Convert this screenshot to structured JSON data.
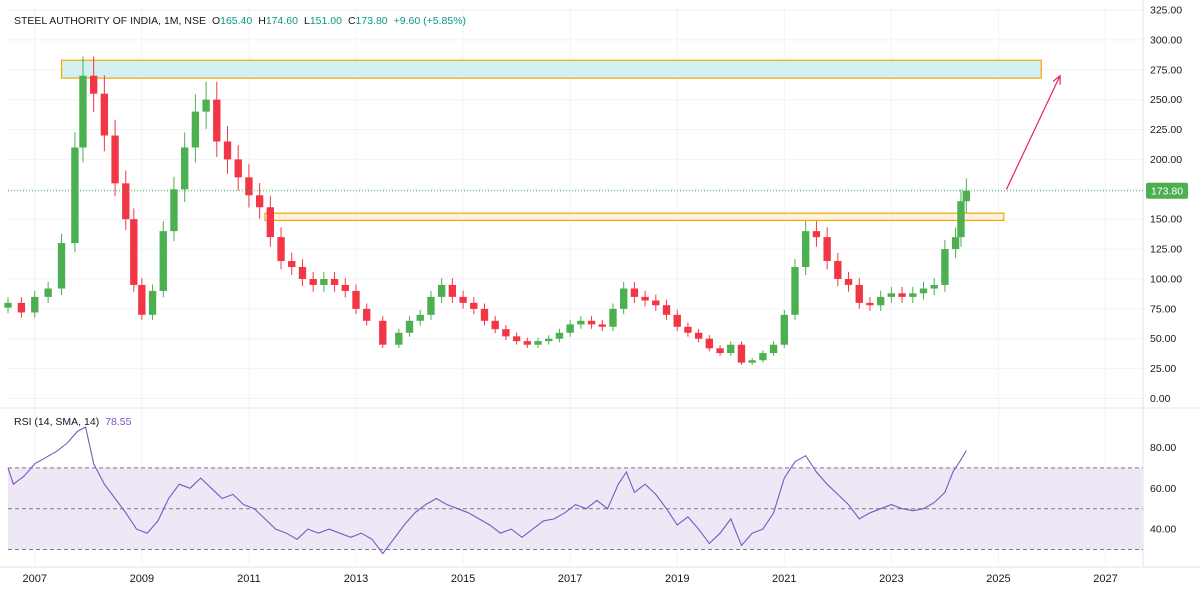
{
  "header": {
    "symbol": "STEEL AUTHORITY OF INDIA, 1M, NSE",
    "o_label": "O",
    "o_value": "165.40",
    "h_label": "H",
    "h_value": "174.60",
    "l_label": "L",
    "l_value": "151.00",
    "c_label": "C",
    "c_value": "173.80",
    "change": "+9.60 (+5.85%)"
  },
  "rsi_header": {
    "label": "RSI (14, SMA, 14)",
    "value": "78.55"
  },
  "price_badge": "173.80",
  "colors": {
    "up": "#4caf50",
    "down": "#f23645",
    "rsi": "#7e57c2",
    "rsi_band": "#ede7f6",
    "zone_fill": "#d3f1f0",
    "zone_border": "#f7a600",
    "arrow": "#e91e63",
    "price_line": "#4caf50",
    "grid": "#f0f3fa",
    "axis_text": "#131722"
  },
  "chart_data": [
    {
      "type": "candlestick",
      "title": "",
      "y_ticks": [
        "0.00",
        "25.00",
        "50.00",
        "75.00",
        "100.00",
        "125.00",
        "150.00",
        "175.00",
        "200.00",
        "225.00",
        "250.00",
        "275.00",
        "300.00",
        "325.00"
      ],
      "ylim": [
        0,
        325
      ],
      "x_ticks": [
        "2007",
        "2009",
        "2011",
        "2013",
        "2015",
        "2017",
        "2019",
        "2021",
        "2023",
        "2025",
        "2027"
      ],
      "last_price": 173.8,
      "resistance_zone": {
        "x_start": 2007.5,
        "x_end": 2025.8,
        "low": 268,
        "high": 283
      },
      "support_zone": {
        "x_start": 2011.3,
        "x_end": 2025.1,
        "low": 149,
        "high": 155
      },
      "arrow": {
        "from": [
          2025.15,
          175
        ],
        "to": [
          2026.15,
          270
        ]
      },
      "series": [
        [
          2006.5,
          80
        ],
        [
          2006.75,
          72
        ],
        [
          2007.0,
          85
        ],
        [
          2007.25,
          92
        ],
        [
          2007.5,
          130
        ],
        [
          2007.75,
          210
        ],
        [
          2007.9,
          270
        ],
        [
          2008.1,
          255
        ],
        [
          2008.3,
          220
        ],
        [
          2008.5,
          180
        ],
        [
          2008.7,
          150
        ],
        [
          2008.85,
          95
        ],
        [
          2009.0,
          70
        ],
        [
          2009.2,
          90
        ],
        [
          2009.4,
          140
        ],
        [
          2009.6,
          175
        ],
        [
          2009.8,
          210
        ],
        [
          2010.0,
          240
        ],
        [
          2010.2,
          250
        ],
        [
          2010.4,
          215
        ],
        [
          2010.6,
          200
        ],
        [
          2010.8,
          185
        ],
        [
          2011.0,
          170
        ],
        [
          2011.2,
          160
        ],
        [
          2011.4,
          135
        ],
        [
          2011.6,
          115
        ],
        [
          2011.8,
          110
        ],
        [
          2012.0,
          100
        ],
        [
          2012.2,
          95
        ],
        [
          2012.4,
          100
        ],
        [
          2012.6,
          95
        ],
        [
          2012.8,
          90
        ],
        [
          2013.0,
          75
        ],
        [
          2013.2,
          65
        ],
        [
          2013.5,
          45
        ],
        [
          2013.8,
          55
        ],
        [
          2014.0,
          65
        ],
        [
          2014.2,
          70
        ],
        [
          2014.4,
          85
        ],
        [
          2014.6,
          95
        ],
        [
          2014.8,
          85
        ],
        [
          2015.0,
          80
        ],
        [
          2015.2,
          75
        ],
        [
          2015.4,
          65
        ],
        [
          2015.6,
          58
        ],
        [
          2015.8,
          52
        ],
        [
          2016.0,
          48
        ],
        [
          2016.2,
          45
        ],
        [
          2016.4,
          48
        ],
        [
          2016.6,
          50
        ],
        [
          2016.8,
          55
        ],
        [
          2017.0,
          62
        ],
        [
          2017.2,
          65
        ],
        [
          2017.4,
          62
        ],
        [
          2017.6,
          60
        ],
        [
          2017.8,
          75
        ],
        [
          2018.0,
          92
        ],
        [
          2018.2,
          85
        ],
        [
          2018.4,
          82
        ],
        [
          2018.6,
          78
        ],
        [
          2018.8,
          70
        ],
        [
          2019.0,
          60
        ],
        [
          2019.2,
          55
        ],
        [
          2019.4,
          50
        ],
        [
          2019.6,
          42
        ],
        [
          2019.8,
          38
        ],
        [
          2020.0,
          45
        ],
        [
          2020.2,
          30
        ],
        [
          2020.4,
          32
        ],
        [
          2020.6,
          38
        ],
        [
          2020.8,
          45
        ],
        [
          2021.0,
          70
        ],
        [
          2021.2,
          110
        ],
        [
          2021.4,
          140
        ],
        [
          2021.6,
          135
        ],
        [
          2021.8,
          115
        ],
        [
          2022.0,
          100
        ],
        [
          2022.2,
          95
        ],
        [
          2022.4,
          80
        ],
        [
          2022.6,
          78
        ],
        [
          2022.8,
          85
        ],
        [
          2023.0,
          88
        ],
        [
          2023.2,
          85
        ],
        [
          2023.4,
          88
        ],
        [
          2023.6,
          92
        ],
        [
          2023.8,
          95
        ],
        [
          2024.0,
          125
        ],
        [
          2024.2,
          135
        ],
        [
          2024.3,
          165
        ],
        [
          2024.4,
          173.8
        ]
      ]
    },
    {
      "type": "line",
      "title": "",
      "y_ticks": [
        "40.00",
        "60.00",
        "80.00"
      ],
      "ylim": [
        25,
        95
      ],
      "bands": [
        30,
        50,
        70
      ],
      "series": [
        [
          2006.5,
          70
        ],
        [
          2006.6,
          62
        ],
        [
          2006.8,
          66
        ],
        [
          2007.0,
          72
        ],
        [
          2007.2,
          75
        ],
        [
          2007.4,
          78
        ],
        [
          2007.6,
          82
        ],
        [
          2007.8,
          88
        ],
        [
          2007.95,
          90
        ],
        [
          2008.1,
          72
        ],
        [
          2008.3,
          62
        ],
        [
          2008.5,
          55
        ],
        [
          2008.7,
          48
        ],
        [
          2008.9,
          40
        ],
        [
          2009.1,
          38
        ],
        [
          2009.3,
          44
        ],
        [
          2009.5,
          55
        ],
        [
          2009.7,
          62
        ],
        [
          2009.9,
          60
        ],
        [
          2010.1,
          65
        ],
        [
          2010.3,
          60
        ],
        [
          2010.5,
          55
        ],
        [
          2010.7,
          57
        ],
        [
          2010.9,
          52
        ],
        [
          2011.1,
          50
        ],
        [
          2011.3,
          45
        ],
        [
          2011.5,
          40
        ],
        [
          2011.7,
          38
        ],
        [
          2011.9,
          35
        ],
        [
          2012.1,
          40
        ],
        [
          2012.3,
          38
        ],
        [
          2012.5,
          40
        ],
        [
          2012.7,
          38
        ],
        [
          2012.9,
          36
        ],
        [
          2013.1,
          38
        ],
        [
          2013.3,
          35
        ],
        [
          2013.5,
          28
        ],
        [
          2013.7,
          35
        ],
        [
          2013.9,
          42
        ],
        [
          2014.1,
          48
        ],
        [
          2014.3,
          52
        ],
        [
          2014.5,
          55
        ],
        [
          2014.7,
          52
        ],
        [
          2014.9,
          50
        ],
        [
          2015.1,
          48
        ],
        [
          2015.3,
          45
        ],
        [
          2015.5,
          42
        ],
        [
          2015.7,
          38
        ],
        [
          2015.9,
          40
        ],
        [
          2016.1,
          36
        ],
        [
          2016.3,
          40
        ],
        [
          2016.5,
          44
        ],
        [
          2016.7,
          45
        ],
        [
          2016.9,
          48
        ],
        [
          2017.1,
          52
        ],
        [
          2017.3,
          50
        ],
        [
          2017.5,
          54
        ],
        [
          2017.7,
          50
        ],
        [
          2017.9,
          62
        ],
        [
          2018.05,
          68
        ],
        [
          2018.2,
          58
        ],
        [
          2018.4,
          62
        ],
        [
          2018.6,
          57
        ],
        [
          2018.8,
          50
        ],
        [
          2019.0,
          42
        ],
        [
          2019.2,
          46
        ],
        [
          2019.4,
          40
        ],
        [
          2019.6,
          33
        ],
        [
          2019.8,
          38
        ],
        [
          2020.0,
          45
        ],
        [
          2020.2,
          32
        ],
        [
          2020.4,
          38
        ],
        [
          2020.6,
          40
        ],
        [
          2020.8,
          48
        ],
        [
          2021.0,
          65
        ],
        [
          2021.2,
          73
        ],
        [
          2021.4,
          76
        ],
        [
          2021.6,
          68
        ],
        [
          2021.8,
          62
        ],
        [
          2022.0,
          57
        ],
        [
          2022.2,
          52
        ],
        [
          2022.4,
          45
        ],
        [
          2022.6,
          48
        ],
        [
          2022.8,
          50
        ],
        [
          2023.0,
          52
        ],
        [
          2023.2,
          50
        ],
        [
          2023.4,
          49
        ],
        [
          2023.6,
          50
        ],
        [
          2023.8,
          53
        ],
        [
          2024.0,
          58
        ],
        [
          2024.15,
          68
        ],
        [
          2024.3,
          74
        ],
        [
          2024.4,
          78.55
        ]
      ]
    }
  ]
}
